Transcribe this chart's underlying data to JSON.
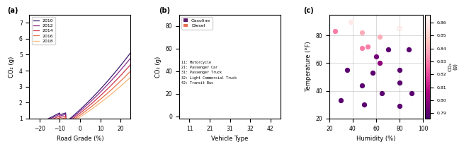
{
  "panel_a": {
    "years": [
      2010,
      2012,
      2014,
      2016,
      2018
    ],
    "colors": [
      "#3b1a6e",
      "#8b2b8b",
      "#cc3a50",
      "#e8724a",
      "#f5b87a"
    ],
    "xlabel": "Road Grade (%)",
    "ylabel": "CO₂ (g)",
    "xlim": [
      -25,
      25
    ],
    "ylim": [
      1,
      7.5
    ],
    "xticks": [
      -20,
      -10,
      0,
      10,
      20
    ],
    "yticks": [
      1,
      2,
      3,
      4,
      5,
      6,
      7
    ],
    "scales": [
      1.0,
      0.935,
      0.855,
      0.775,
      0.7
    ]
  },
  "panel_b": {
    "vehicle_types": [
      11,
      21,
      31,
      32,
      42
    ],
    "gasoline_color": "#5c1a6b",
    "diesel_color": "#e87050",
    "xlabel": "Vehicle Type",
    "ylabel": "CO₂ (g)",
    "ylim": [
      -2,
      90
    ],
    "yticks": [
      0,
      20,
      40,
      60,
      80
    ],
    "annotations": [
      "11: Motorcycle",
      "21: Passenger Car",
      "31: Passenger Truck",
      "32: Light Commercial Truck",
      "42: Transit Bus"
    ]
  },
  "panel_c": {
    "points": [
      {
        "humidity": 25,
        "temp": 83,
        "co2": 0.83,
        "open": false
      },
      {
        "humidity": 30,
        "temp": 33,
        "co2": 0.79,
        "open": false
      },
      {
        "humidity": 35,
        "temp": 55,
        "co2": 0.79,
        "open": false
      },
      {
        "humidity": 38,
        "temp": 90,
        "co2": 0.86,
        "open": false
      },
      {
        "humidity": 48,
        "temp": 71,
        "co2": 0.83,
        "open": false
      },
      {
        "humidity": 48,
        "temp": 44,
        "co2": 0.79,
        "open": false
      },
      {
        "humidity": 48,
        "temp": 82,
        "co2": 0.84,
        "open": false
      },
      {
        "humidity": 50,
        "temp": 30,
        "co2": 0.79,
        "open": false
      },
      {
        "humidity": 53,
        "temp": 72,
        "co2": 0.83,
        "open": false
      },
      {
        "humidity": 57,
        "temp": 53,
        "co2": 0.79,
        "open": false
      },
      {
        "humidity": 60,
        "temp": 65,
        "co2": 0.795,
        "open": false
      },
      {
        "humidity": 63,
        "temp": 79,
        "co2": 0.84,
        "open": false
      },
      {
        "humidity": 63,
        "temp": 60,
        "co2": 0.8,
        "open": false
      },
      {
        "humidity": 65,
        "temp": 38,
        "co2": 0.79,
        "open": false
      },
      {
        "humidity": 70,
        "temp": 70,
        "co2": 0.79,
        "open": false
      },
      {
        "humidity": 80,
        "temp": 85,
        "co2": 0.855,
        "open": true
      },
      {
        "humidity": 80,
        "temp": 55,
        "co2": 0.79,
        "open": false
      },
      {
        "humidity": 80,
        "temp": 46,
        "co2": 0.79,
        "open": false
      },
      {
        "humidity": 80,
        "temp": 29,
        "co2": 0.79,
        "open": false
      },
      {
        "humidity": 88,
        "temp": 70,
        "co2": 0.79,
        "open": false
      },
      {
        "humidity": 90,
        "temp": 38,
        "co2": 0.79,
        "open": false
      }
    ],
    "xlabel": "Humidity (%)",
    "ylabel": "Temperature (°F)",
    "cbar_label": "CO₂\n(g)",
    "xlim": [
      20,
      100
    ],
    "ylim": [
      20,
      95
    ],
    "xticks": [
      20,
      40,
      60,
      80,
      100
    ],
    "yticks": [
      20,
      40,
      60,
      80
    ],
    "cmap": "RdPu_r",
    "vmin": 0.786,
    "vmax": 0.866,
    "cbar_ticks": [
      0.79,
      0.8,
      0.81,
      0.82,
      0.83,
      0.84,
      0.85,
      0.86
    ],
    "cbar_ticklabels": [
      "0.79",
      "0.80",
      "0.81",
      "0.82",
      "0.83",
      "0.84",
      "0.85",
      "0.86"
    ]
  }
}
